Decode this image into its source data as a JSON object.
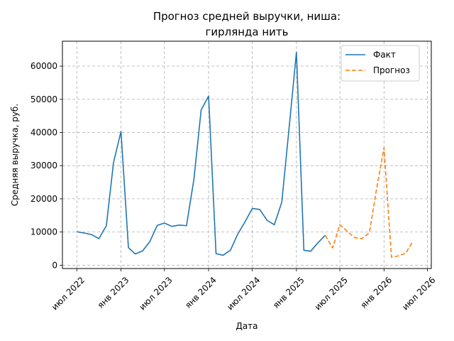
{
  "chart_data": {
    "type": "line",
    "title_lines": [
      "Прогноз средней выручки, ниша:",
      "гирлянда нить"
    ],
    "xlabel": "Дата",
    "ylabel": "Средняя выручка, руб.",
    "xlim": [
      "2022-05-02",
      "2026-07-17"
    ],
    "ylim": [
      -1000,
      67500
    ],
    "x_ticks": [
      {
        "date": "2022-07-01",
        "label": "июл 2022"
      },
      {
        "date": "2023-01-01",
        "label": "янв 2023"
      },
      {
        "date": "2023-07-01",
        "label": "июл 2023"
      },
      {
        "date": "2024-01-01",
        "label": "янв 2024"
      },
      {
        "date": "2024-07-01",
        "label": "июл 2024"
      },
      {
        "date": "2025-01-01",
        "label": "янв 2025"
      },
      {
        "date": "2025-07-01",
        "label": "июл 2025"
      },
      {
        "date": "2026-01-01",
        "label": "янв 2026"
      },
      {
        "date": "2026-07-01",
        "label": "июл 2026"
      }
    ],
    "y_ticks": [
      0,
      10000,
      20000,
      30000,
      40000,
      50000,
      60000
    ],
    "grid": true,
    "legend_position": "top-right",
    "series": [
      {
        "name": "Факт",
        "color": "#1f77b4",
        "style": "solid",
        "points": [
          {
            "x": "2022-07-01",
            "y": 10100
          },
          {
            "x": "2022-08-01",
            "y": 9700
          },
          {
            "x": "2022-09-01",
            "y": 9200
          },
          {
            "x": "2022-10-01",
            "y": 8000
          },
          {
            "x": "2022-11-01",
            "y": 11900
          },
          {
            "x": "2022-12-01",
            "y": 31000
          },
          {
            "x": "2023-01-01",
            "y": 40300
          },
          {
            "x": "2023-02-01",
            "y": 5300
          },
          {
            "x": "2023-03-01",
            "y": 3400
          },
          {
            "x": "2023-04-01",
            "y": 4300
          },
          {
            "x": "2023-05-01",
            "y": 7100
          },
          {
            "x": "2023-06-01",
            "y": 12000
          },
          {
            "x": "2023-07-01",
            "y": 12700
          },
          {
            "x": "2023-08-01",
            "y": 11700
          },
          {
            "x": "2023-09-01",
            "y": 12100
          },
          {
            "x": "2023-10-01",
            "y": 11900
          },
          {
            "x": "2023-11-01",
            "y": 26000
          },
          {
            "x": "2023-12-01",
            "y": 46800
          },
          {
            "x": "2024-01-01",
            "y": 51000
          },
          {
            "x": "2024-02-01",
            "y": 3500
          },
          {
            "x": "2024-03-01",
            "y": 3000
          },
          {
            "x": "2024-04-01",
            "y": 4500
          },
          {
            "x": "2024-05-01",
            "y": 9300
          },
          {
            "x": "2024-06-01",
            "y": 13100
          },
          {
            "x": "2024-07-01",
            "y": 17100
          },
          {
            "x": "2024-08-01",
            "y": 16800
          },
          {
            "x": "2024-09-01",
            "y": 13500
          },
          {
            "x": "2024-10-01",
            "y": 12200
          },
          {
            "x": "2024-11-01",
            "y": 19000
          },
          {
            "x": "2024-12-01",
            "y": 41000
          },
          {
            "x": "2025-01-01",
            "y": 64200
          },
          {
            "x": "2025-02-01",
            "y": 4500
          },
          {
            "x": "2025-03-01",
            "y": 4200
          },
          {
            "x": "2025-04-01",
            "y": 6800
          },
          {
            "x": "2025-05-01",
            "y": 9000
          }
        ]
      },
      {
        "name": "Прогноз",
        "color": "#ff7f0e",
        "style": "dashed",
        "points": [
          {
            "x": "2025-05-01",
            "y": 9000
          },
          {
            "x": "2025-06-01",
            "y": 5200
          },
          {
            "x": "2025-07-01",
            "y": 12200
          },
          {
            "x": "2025-08-01",
            "y": 10200
          },
          {
            "x": "2025-09-01",
            "y": 8300
          },
          {
            "x": "2025-10-01",
            "y": 8000
          },
          {
            "x": "2025-11-01",
            "y": 9800
          },
          {
            "x": "2025-12-01",
            "y": 23000
          },
          {
            "x": "2026-01-01",
            "y": 35400
          },
          {
            "x": "2026-02-01",
            "y": 2400
          },
          {
            "x": "2026-03-01",
            "y": 2800
          },
          {
            "x": "2026-04-01",
            "y": 3600
          },
          {
            "x": "2026-05-01",
            "y": 7200
          }
        ]
      }
    ]
  }
}
